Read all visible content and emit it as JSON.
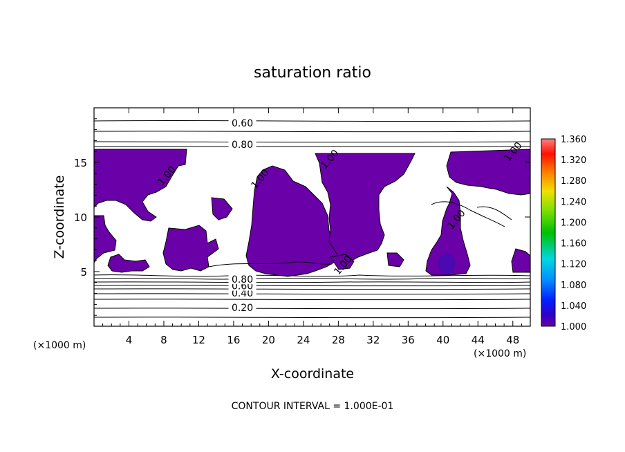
{
  "chart_data": {
    "type": "contour",
    "title": "saturation ratio",
    "xlabel": "X-coordinate",
    "ylabel": "Z-coordinate",
    "x_unit_left": "(×1000 m)",
    "x_unit_right": "(×1000 m)",
    "xlim": [
      0,
      50
    ],
    "ylim": [
      0,
      20
    ],
    "x_ticks": [
      4,
      8,
      12,
      16,
      20,
      24,
      28,
      32,
      36,
      40,
      44,
      48
    ],
    "y_ticks": [
      5,
      10,
      15
    ],
    "footer": "CONTOUR INTERVAL = 1.000E-01",
    "contour_labels": [
      {
        "text": "0.60",
        "x": 17.0,
        "y": 18.6
      },
      {
        "text": "0.80",
        "x": 17.0,
        "y": 16.65
      },
      {
        "text": "0.20",
        "x": 17.0,
        "y": 1.7
      },
      {
        "text": "0.40",
        "x": 17.0,
        "y": 3.05
      },
      {
        "text": "0.60",
        "x": 17.0,
        "y": 3.7
      },
      {
        "text": "0.80",
        "x": 17.0,
        "y": 4.3
      },
      {
        "text": "1.00",
        "x": 8.3,
        "y": 13.8
      },
      {
        "text": "1.00",
        "x": 19.0,
        "y": 13.5
      },
      {
        "text": "1.00",
        "x": 27.0,
        "y": 15.3
      },
      {
        "text": "1.00",
        "x": 48.0,
        "y": 16.0
      },
      {
        "text": "1.00",
        "x": 41.5,
        "y": 9.8
      },
      {
        "text": "1.00",
        "x": 28.5,
        "y": 5.6
      }
    ],
    "colorbar": {
      "min": 1.0,
      "max": 1.36,
      "labels": [
        "1.360",
        "1.320",
        "1.280",
        "1.240",
        "1.200",
        "1.160",
        "1.120",
        "1.080",
        "1.040",
        "1.000"
      ]
    },
    "colors": {
      "supersaturated_fill": "#6a00a8",
      "colorbar_top": "#ff8080",
      "colorbar_bottom": "#6a00a8"
    }
  }
}
